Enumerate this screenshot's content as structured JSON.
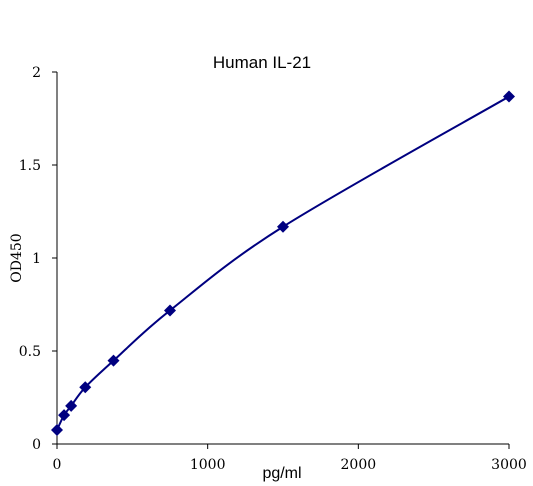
{
  "chart_data": {
    "type": "scatter",
    "title": "Human IL-21",
    "xlabel": "pg/ml",
    "ylabel": "OD450",
    "xlim": [
      0,
      3000
    ],
    "ylim": [
      0,
      2
    ],
    "x_ticks": [
      "0",
      "1000",
      "2000",
      "3000"
    ],
    "y_ticks": [
      "0",
      "0.5",
      "1",
      "1.5",
      "2"
    ],
    "grid": false,
    "legend": "none",
    "marker": "diamond",
    "color": "#000080",
    "fit": "smooth curve",
    "series": [
      {
        "x": [
          0,
          46.9,
          93.8,
          187.5,
          375,
          750,
          1500,
          3000
        ],
        "y": [
          0.075,
          0.155,
          0.205,
          0.305,
          0.448,
          0.718,
          1.168,
          1.868
        ]
      }
    ]
  }
}
